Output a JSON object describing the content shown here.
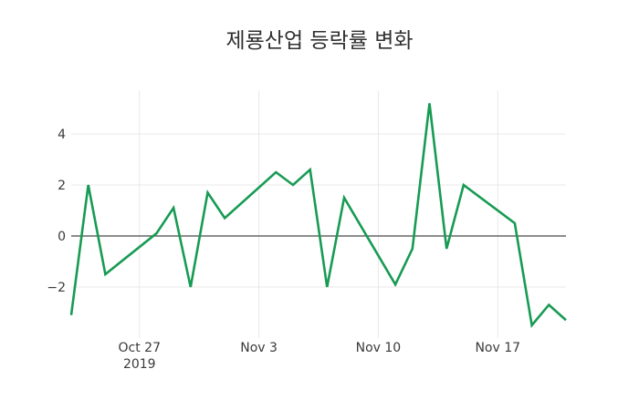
{
  "title": "제룡산업 등락률 변화",
  "chart_data": {
    "type": "line",
    "title": "제룡산업 등락률 변화",
    "xlabel": "",
    "ylabel": "",
    "grid": true,
    "legend": "none",
    "background": "#ffffff",
    "grid_color": "#e8e8e8",
    "zeroline": true,
    "zeroline_color": "#484848",
    "text_color": "#3a3a3a",
    "title_color": "#303030",
    "ylim": [
      -4.0,
      5.68
    ],
    "y_ticks": [
      {
        "value": 4,
        "label": "4"
      },
      {
        "value": 2,
        "label": "2"
      },
      {
        "value": 0,
        "label": "0"
      },
      {
        "value": -2,
        "label": "−2"
      }
    ],
    "x_ticks": [
      {
        "date": "2019-10-27",
        "lines": [
          "Oct 27",
          "2019"
        ]
      },
      {
        "date": "2019-11-03",
        "lines": [
          "Nov 3"
        ]
      },
      {
        "date": "2019-11-10",
        "lines": [
          "Nov 10"
        ]
      },
      {
        "date": "2019-11-17",
        "lines": [
          "Nov 17"
        ]
      }
    ],
    "x_range": [
      "2019-10-23",
      "2019-11-21"
    ],
    "series": [
      {
        "name": "등락률",
        "color": "#179b54",
        "x": [
          "2019-10-23",
          "2019-10-24",
          "2019-10-25",
          "2019-10-28",
          "2019-10-29",
          "2019-10-30",
          "2019-10-31",
          "2019-11-01",
          "2019-11-04",
          "2019-11-05",
          "2019-11-06",
          "2019-11-07",
          "2019-11-08",
          "2019-11-11",
          "2019-11-12",
          "2019-11-13",
          "2019-11-14",
          "2019-11-15",
          "2019-11-18",
          "2019-11-19",
          "2019-11-20",
          "2019-11-21"
        ],
        "values": [
          -3.1,
          2.0,
          -1.5,
          0.1,
          1.1,
          -2.0,
          1.7,
          0.7,
          2.5,
          2.0,
          2.6,
          -2.0,
          1.5,
          -1.9,
          -0.5,
          5.2,
          -0.5,
          2.0,
          0.5,
          -3.5,
          -2.7,
          -3.3
        ]
      }
    ]
  }
}
